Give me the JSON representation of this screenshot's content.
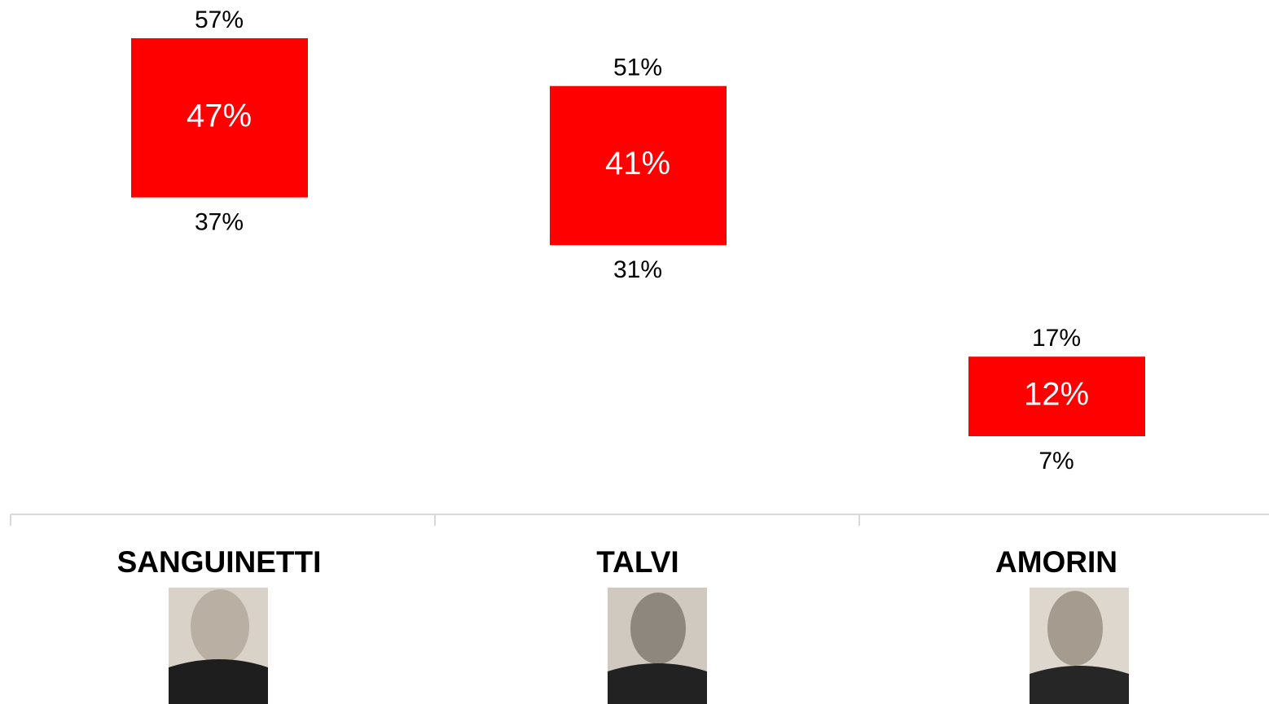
{
  "chart_data": {
    "type": "range-box",
    "categories": [
      "SANGUINETTI",
      "TALVI",
      "AMORIN"
    ],
    "values": [
      47,
      41,
      12
    ],
    "value_labels": [
      "47%",
      "41%",
      "12%"
    ],
    "low": [
      37,
      31,
      7
    ],
    "low_labels": [
      "37%",
      "31%",
      "7%"
    ],
    "high": [
      57,
      51,
      17
    ],
    "high_labels": [
      "57%",
      "51%",
      "17%"
    ],
    "color": "#ff0000"
  }
}
